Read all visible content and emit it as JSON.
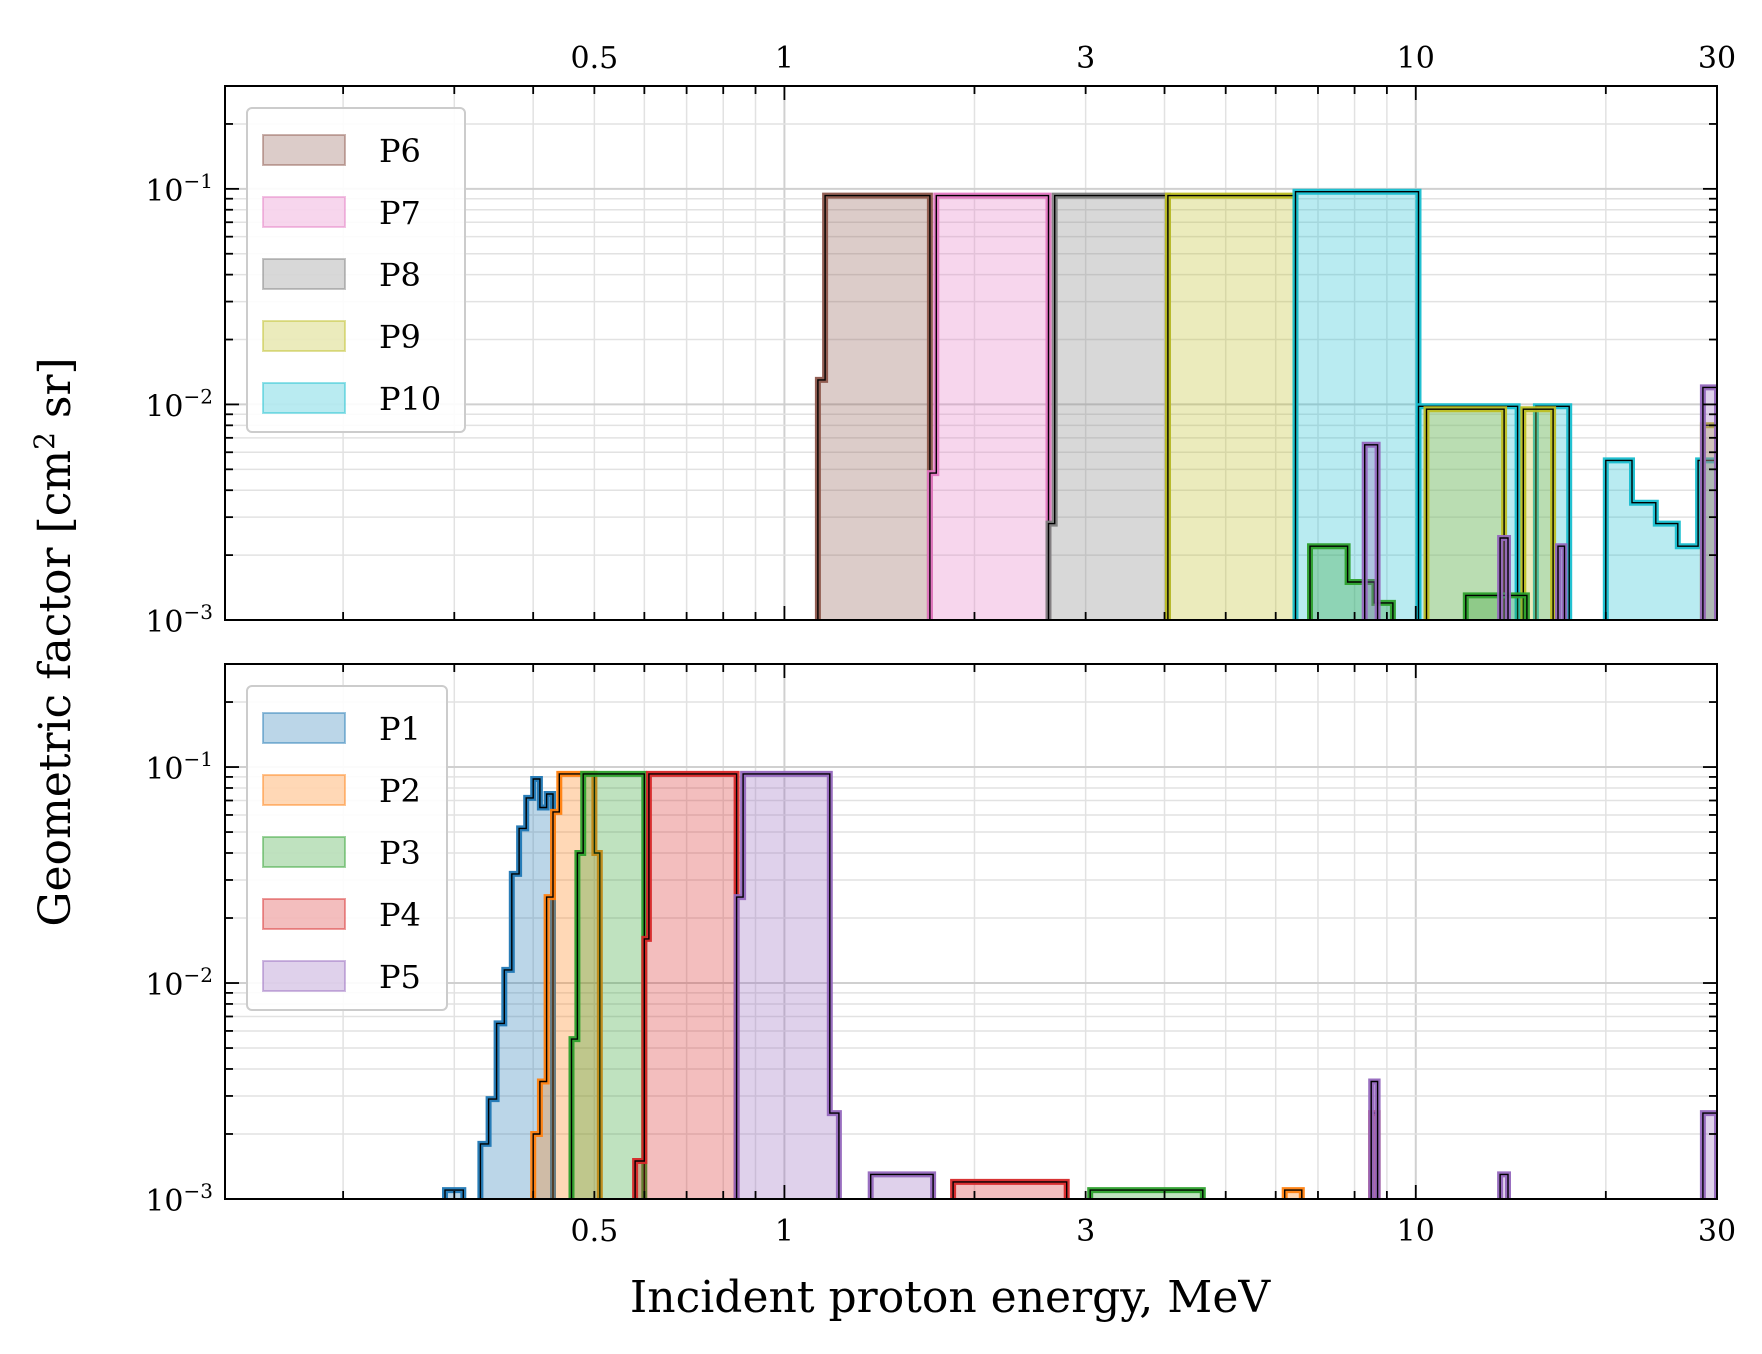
{
  "figure": {
    "xlabel": "Incident proton energy, MeV",
    "ylabel_main": "Geometric factor [cm",
    "ylabel_sup": "2",
    "ylabel_tail": " sr]"
  },
  "chart_data": [
    {
      "type": "area",
      "panel": "top",
      "x_scale": "log",
      "y_scale": "log",
      "xlim": [
        0.13,
        30
      ],
      "ylim": [
        0.001,
        0.3
      ],
      "x_ticks": [
        0.5,
        1,
        3,
        10,
        30
      ],
      "x_tick_labels": [
        "0.5",
        "1",
        "3",
        "10",
        "30"
      ],
      "y_ticks": [
        0.001,
        0.01,
        0.1
      ],
      "y_tick_labels": [
        [
          "10",
          "−3"
        ],
        [
          "10",
          "−2"
        ],
        [
          "10",
          "−1"
        ]
      ],
      "legend_position": "upper-left",
      "grid": true,
      "series": [
        {
          "name": "P6",
          "color": "#8c564b",
          "points": [
            [
              1.13,
              0.0005
            ],
            [
              1.13,
              0.013
            ],
            [
              1.16,
              0.013
            ],
            [
              1.16,
              0.093
            ],
            [
              1.7,
              0.093
            ],
            [
              1.7,
              0.0005
            ]
          ]
        },
        {
          "name": "P7",
          "color": "#e377c2",
          "points": [
            [
              1.7,
              0.0005
            ],
            [
              1.7,
              0.0048
            ],
            [
              1.74,
              0.0048
            ],
            [
              1.74,
              0.093
            ],
            [
              2.62,
              0.093
            ],
            [
              2.62,
              0.0005
            ]
          ]
        },
        {
          "name": "P8",
          "color": "#7f7f7f",
          "points": [
            [
              2.62,
              0.0005
            ],
            [
              2.62,
              0.0028
            ],
            [
              2.68,
              0.0028
            ],
            [
              2.68,
              0.093
            ],
            [
              4.05,
              0.093
            ],
            [
              4.05,
              0.0005
            ]
          ]
        },
        {
          "name": "P9",
          "color": "#bcbd22",
          "points": [
            [
              4.05,
              0.0005
            ],
            [
              4.05,
              0.093
            ],
            [
              6.45,
              0.093
            ],
            [
              6.45,
              0.0005
            ]
          ]
        },
        {
          "name": "P10",
          "color": "#17becf",
          "points": [
            [
              6.45,
              0.0005
            ],
            [
              6.45,
              0.097
            ],
            [
              10.1,
              0.097
            ],
            [
              10.1,
              0.0005
            ]
          ]
        },
        {
          "name": "",
          "color": "#17becf",
          "points": [
            [
              10.1,
              0.0005
            ],
            [
              10.1,
              0.0098
            ],
            [
              14.5,
              0.0098
            ],
            [
              14.5,
              0.0005
            ],
            [
              15.5,
              0.0005
            ],
            [
              15.5,
              0.0098
            ],
            [
              17.5,
              0.0098
            ],
            [
              17.5,
              0.0005
            ],
            [
              20,
              0.0005
            ],
            [
              20,
              0.0055
            ],
            [
              22,
              0.0055
            ],
            [
              22,
              0.0035
            ],
            [
              24,
              0.0035
            ],
            [
              24,
              0.0028
            ],
            [
              26,
              0.0028
            ],
            [
              26,
              0.0022
            ],
            [
              28,
              0.0022
            ],
            [
              28,
              0.0055
            ],
            [
              30,
              0.0055
            ],
            [
              30,
              0.0005
            ]
          ]
        },
        {
          "name": "",
          "color": "#bcbd22",
          "points": [
            [
              10.4,
              0.0005
            ],
            [
              10.4,
              0.0095
            ],
            [
              13.8,
              0.0095
            ],
            [
              13.8,
              0.0005
            ],
            [
              14.8,
              0.0005
            ],
            [
              14.8,
              0.0095
            ],
            [
              16.5,
              0.0095
            ],
            [
              16.5,
              0.0005
            ],
            [
              28.5,
              0.0005
            ],
            [
              28.5,
              0.008
            ],
            [
              30,
              0.008
            ],
            [
              30,
              0.0005
            ]
          ]
        },
        {
          "name": "",
          "color": "#2ca02c",
          "points": [
            [
              6.8,
              0.0005
            ],
            [
              6.8,
              0.0022
            ],
            [
              7.8,
              0.0022
            ],
            [
              7.8,
              0.0015
            ],
            [
              8.6,
              0.0015
            ],
            [
              8.6,
              0.0012
            ],
            [
              9.2,
              0.0012
            ],
            [
              9.2,
              0.0005
            ],
            [
              12,
              0.0005
            ],
            [
              12,
              0.0013
            ],
            [
              15,
              0.0013
            ],
            [
              15,
              0.0005
            ]
          ]
        },
        {
          "name": "",
          "color": "#9467bd",
          "points": [
            [
              8.3,
              0.0005
            ],
            [
              8.3,
              0.0065
            ],
            [
              8.7,
              0.0065
            ],
            [
              8.7,
              0.0005
            ],
            [
              13.6,
              0.0005
            ],
            [
              13.6,
              0.0024
            ],
            [
              14,
              0.0024
            ],
            [
              14,
              0.0005
            ],
            [
              16.8,
              0.0005
            ],
            [
              16.8,
              0.0022
            ],
            [
              17.2,
              0.0022
            ],
            [
              17.2,
              0.0005
            ],
            [
              28.5,
              0.0005
            ],
            [
              28.5,
              0.012
            ],
            [
              30,
              0.012
            ],
            [
              30,
              0.0005
            ]
          ]
        }
      ]
    },
    {
      "type": "area",
      "panel": "bottom",
      "x_scale": "log",
      "y_scale": "log",
      "xlim": [
        0.13,
        30
      ],
      "ylim": [
        0.001,
        0.3
      ],
      "x_ticks": [
        0.5,
        1,
        3,
        10,
        30
      ],
      "x_tick_labels": [
        "0.5",
        "1",
        "3",
        "10",
        "30"
      ],
      "y_ticks": [
        0.001,
        0.01,
        0.1
      ],
      "y_tick_labels": [
        [
          "10",
          "−3"
        ],
        [
          "10",
          "−2"
        ],
        [
          "10",
          "−1"
        ]
      ],
      "legend_position": "upper-left",
      "grid": true,
      "series": [
        {
          "name": "P1",
          "color": "#1f77b4",
          "points": [
            [
              0.29,
              0.0005
            ],
            [
              0.29,
              0.0011
            ],
            [
              0.31,
              0.0011
            ],
            [
              0.31,
              0.0005
            ],
            [
              0.33,
              0.0005
            ],
            [
              0.33,
              0.0018
            ],
            [
              0.34,
              0.0018
            ],
            [
              0.34,
              0.0029
            ],
            [
              0.35,
              0.0029
            ],
            [
              0.35,
              0.0065
            ],
            [
              0.36,
              0.0065
            ],
            [
              0.36,
              0.0115
            ],
            [
              0.37,
              0.0115
            ],
            [
              0.37,
              0.032
            ],
            [
              0.38,
              0.032
            ],
            [
              0.38,
              0.052
            ],
            [
              0.39,
              0.052
            ],
            [
              0.39,
              0.072
            ],
            [
              0.4,
              0.072
            ],
            [
              0.4,
              0.088
            ],
            [
              0.41,
              0.088
            ],
            [
              0.41,
              0.065
            ],
            [
              0.42,
              0.065
            ],
            [
              0.42,
              0.075
            ],
            [
              0.43,
              0.075
            ],
            [
              0.43,
              0.0005
            ]
          ]
        },
        {
          "name": "P2",
          "color": "#ff7f0e",
          "points": [
            [
              0.4,
              0.0005
            ],
            [
              0.4,
              0.002
            ],
            [
              0.41,
              0.002
            ],
            [
              0.41,
              0.0035
            ],
            [
              0.42,
              0.0035
            ],
            [
              0.42,
              0.025
            ],
            [
              0.43,
              0.025
            ],
            [
              0.43,
              0.062
            ],
            [
              0.44,
              0.062
            ],
            [
              0.44,
              0.093
            ],
            [
              0.5,
              0.093
            ],
            [
              0.5,
              0.04
            ],
            [
              0.51,
              0.04
            ],
            [
              0.51,
              0.0005
            ],
            [
              6.2,
              0.0005
            ],
            [
              6.2,
              0.0011
            ],
            [
              6.6,
              0.0011
            ],
            [
              6.6,
              0.0005
            ]
          ]
        },
        {
          "name": "P3",
          "color": "#2ca02c",
          "points": [
            [
              0.46,
              0.0005
            ],
            [
              0.46,
              0.0055
            ],
            [
              0.47,
              0.0055
            ],
            [
              0.47,
              0.04
            ],
            [
              0.48,
              0.04
            ],
            [
              0.48,
              0.093
            ],
            [
              0.6,
              0.093
            ],
            [
              0.6,
              0.0005
            ],
            [
              3.05,
              0.0005
            ],
            [
              3.05,
              0.0011
            ],
            [
              4.6,
              0.0011
            ],
            [
              4.6,
              0.0005
            ]
          ]
        },
        {
          "name": "P4",
          "color": "#d62728",
          "points": [
            [
              0.58,
              0.0005
            ],
            [
              0.58,
              0.0015
            ],
            [
              0.6,
              0.0015
            ],
            [
              0.6,
              0.016
            ],
            [
              0.61,
              0.016
            ],
            [
              0.61,
              0.093
            ],
            [
              0.84,
              0.093
            ],
            [
              0.84,
              0.0005
            ],
            [
              1.85,
              0.0005
            ],
            [
              1.85,
              0.0012
            ],
            [
              2.8,
              0.0012
            ],
            [
              2.8,
              0.0005
            ],
            [
              8.5,
              0.0005
            ],
            [
              8.5,
              0.0025
            ],
            [
              8.7,
              0.0025
            ],
            [
              8.7,
              0.0005
            ]
          ]
        },
        {
          "name": "P5",
          "color": "#9467bd",
          "points": [
            [
              0.84,
              0.0005
            ],
            [
              0.84,
              0.025
            ],
            [
              0.86,
              0.025
            ],
            [
              0.86,
              0.093
            ],
            [
              1.18,
              0.093
            ],
            [
              1.18,
              0.0025
            ],
            [
              1.22,
              0.0025
            ],
            [
              1.22,
              0.0005
            ],
            [
              1.37,
              0.0005
            ],
            [
              1.37,
              0.0013
            ],
            [
              1.72,
              0.0013
            ],
            [
              1.72,
              0.0005
            ],
            [
              8.5,
              0.0005
            ],
            [
              8.5,
              0.0035
            ],
            [
              8.7,
              0.0035
            ],
            [
              8.7,
              0.0005
            ],
            [
              13.6,
              0.0005
            ],
            [
              13.6,
              0.0013
            ],
            [
              14,
              0.0013
            ],
            [
              14,
              0.0005
            ],
            [
              28.5,
              0.0005
            ],
            [
              28.5,
              0.0025
            ],
            [
              30,
              0.0025
            ],
            [
              30,
              0.0005
            ]
          ]
        }
      ]
    }
  ]
}
